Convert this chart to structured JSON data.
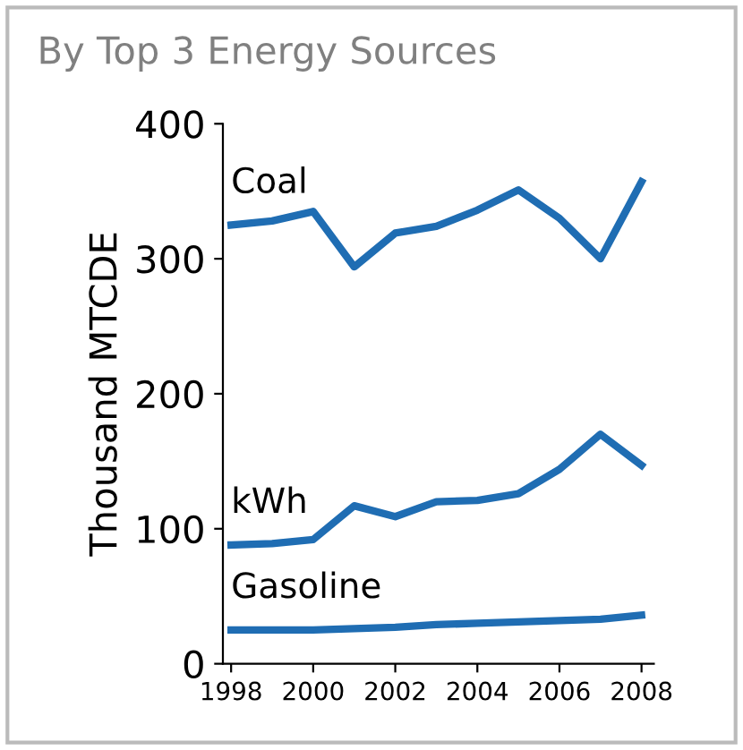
{
  "chart_data": {
    "type": "line",
    "title": "By Top 3 Energy Sources",
    "ylabel": "Thousand MTCDE",
    "x": [
      1998,
      1999,
      2000,
      2001,
      2002,
      2003,
      2004,
      2005,
      2006,
      2007,
      2008
    ],
    "xlim": [
      1997.8,
      2008.3
    ],
    "xticks": [
      1998,
      2000,
      2002,
      2004,
      2006,
      2008
    ],
    "ylim": [
      0,
      400
    ],
    "yticks": [
      0,
      100,
      200,
      300,
      400
    ],
    "grid": false,
    "legend": false,
    "marker": "none",
    "line_style": "solid",
    "series": [
      {
        "name": "Coal",
        "color": "#1f6db3",
        "values": [
          325,
          328,
          335,
          294,
          319,
          324,
          336,
          351,
          330,
          300,
          357
        ]
      },
      {
        "name": "kWh",
        "color": "#1f6db3",
        "values": [
          88,
          89,
          92,
          117,
          109,
          120,
          121,
          126,
          144,
          170,
          147
        ]
      },
      {
        "name": "Gasoline",
        "color": "#1f6db3",
        "values": [
          25,
          25,
          25,
          26,
          27,
          29,
          30,
          31,
          32,
          33,
          36
        ]
      }
    ]
  }
}
